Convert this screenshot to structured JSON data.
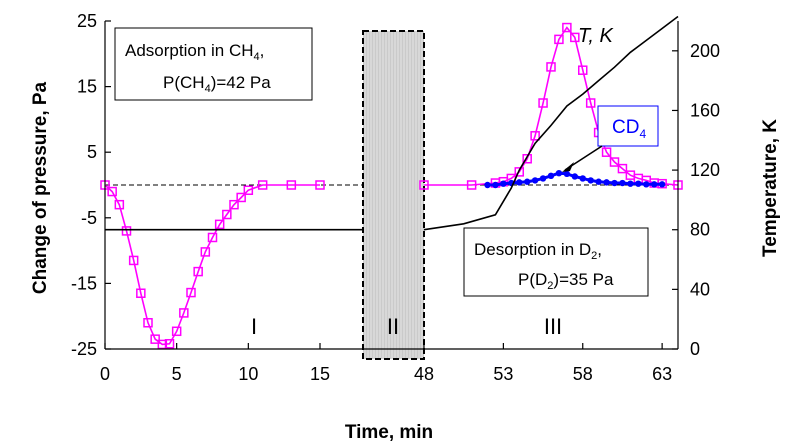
{
  "chart_data": {
    "type": "line",
    "xlabel": "Time, min",
    "ylabel": "Change of pressure, Pa",
    "y2label": "Temperature, K",
    "ylim": [
      -25,
      25
    ],
    "y2lim": [
      0,
      220
    ],
    "yticks": [
      25,
      15,
      5,
      -5,
      -15,
      -25
    ],
    "y2ticks": [
      200,
      160,
      120,
      80,
      40,
      0
    ],
    "xtick_labels": [
      "0",
      "5",
      "10",
      "15",
      "48",
      "53",
      "58",
      "63"
    ],
    "xticks_left": [
      0,
      5,
      10,
      15
    ],
    "xticks_right": [
      48,
      53,
      58,
      63
    ],
    "x_break": {
      "from": 18,
      "to": 48
    },
    "regions": [
      "I",
      "II",
      "III"
    ],
    "annotations": {
      "adsorption_line1": "Adsorption in CH",
      "adsorption_line1_sub": "4",
      "adsorption_line1_end": ",",
      "adsorption_line2_pre": "P(CH",
      "adsorption_line2_sub": "4",
      "adsorption_line2_post": ")=42 Pa",
      "desorption_line1": "Desorption in D",
      "desorption_line1_sub": "2",
      "desorption_line1_end": ",",
      "desorption_line2_pre": "P(D",
      "desorption_line2_sub": "2",
      "desorption_line2_post": ")=35 Pa",
      "temp_label": "T, K",
      "cd4_label_pre": "CD",
      "cd4_label_sub": "4"
    },
    "baseline_y": 0,
    "series": [
      {
        "name": "CH4",
        "axis": "left",
        "color": "#ff00ff",
        "marker": "square-open",
        "segments": [
          {
            "x": [
              0,
              0.5,
              1,
              1.5,
              2,
              2.5,
              3,
              3.5,
              4,
              4.5,
              5,
              5.5,
              6,
              6.5,
              7,
              7.5,
              8,
              8.5,
              9,
              9.5,
              10,
              11,
              13,
              15
            ],
            "y": [
              0,
              -1,
              -3,
              -7,
              -11.5,
              -16.5,
              -21,
              -23.5,
              -24.3,
              -24.2,
              -22.3,
              -19.5,
              -16.4,
              -13.2,
              -10.2,
              -8,
              -6,
              -4.5,
              -3,
              -1.9,
              -0.8,
              0,
              0,
              0
            ]
          },
          {
            "x": [
              48,
              51,
              52.5,
              53,
              53.5,
              54,
              54.5,
              55,
              55.5,
              56,
              56.5,
              57,
              57.5,
              58,
              58.5,
              59,
              59.5,
              60,
              60.5,
              61,
              61.5,
              62,
              62.5,
              63,
              64
            ],
            "y": [
              0,
              0,
              0.3,
              0.5,
              1,
              2,
              4,
              7.5,
              12.5,
              18,
              22.2,
              24,
              22.5,
              17.5,
              12.5,
              8,
              5,
              3.5,
              2.5,
              1.5,
              1,
              0.7,
              0.3,
              0.2,
              0
            ]
          }
        ]
      },
      {
        "name": "CD4",
        "axis": "left",
        "color": "#0000ff",
        "marker": "filled-circle",
        "segments": [
          {
            "x": [
              52,
              52.5,
              53,
              53.5,
              54,
              54.5,
              55,
              55.5,
              56,
              56.5,
              57,
              57.5,
              58,
              58.5,
              59,
              59.5,
              60,
              60.5,
              61,
              61.5,
              62,
              62.5,
              63
            ],
            "y": [
              0,
              0,
              0.2,
              0.3,
              0.4,
              0.5,
              0.7,
              1,
              1.4,
              1.8,
              1.7,
              1.3,
              1,
              0.7,
              0.5,
              0.4,
              0.3,
              0.3,
              0.2,
              0.2,
              0.1,
              0.1,
              0.1
            ]
          }
        ]
      },
      {
        "name": "T",
        "axis": "right",
        "color": "#000000",
        "segments": [
          {
            "x": [
              0,
              15,
              18
            ],
            "y": [
              80,
              80,
              80
            ]
          },
          {
            "x": [
              48,
              50.5,
              52.5,
              53.5,
              54,
              55,
              56,
              57,
              58,
              59,
              60,
              61,
              62,
              63,
              64
            ],
            "y": [
              80,
              84,
              90,
              108,
              120,
              138,
              150,
              163,
              171,
              180,
              189,
              199,
              207,
              215,
              223
            ]
          }
        ]
      }
    ]
  }
}
